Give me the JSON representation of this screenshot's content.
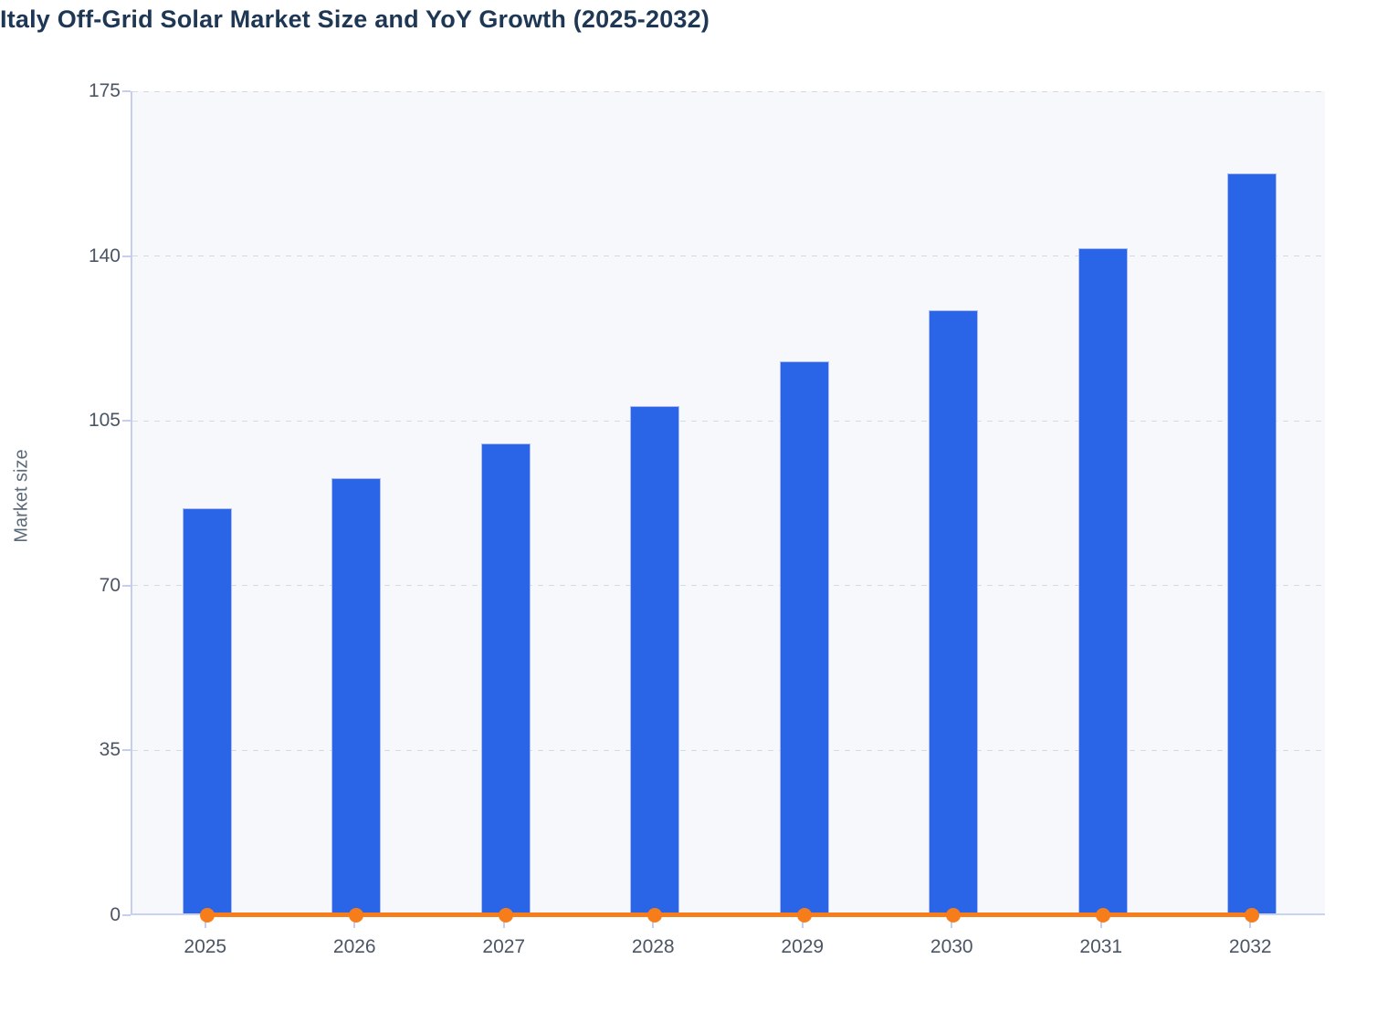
{
  "title": "Italy Off-Grid Solar Market Size and YoY Growth (2025-2032)",
  "y_axis_title": "Market size",
  "colors": {
    "bar_fill": "#2a65e8",
    "bar_border": "#b9c6f5",
    "line_color": "#f77d1a",
    "title_color": "#1e3755",
    "axis_label_color": "#4b5564",
    "axis_line_color": "#c5cef1",
    "gridline_color": "#d6dae0",
    "plot_background": "#f7f8fb"
  },
  "chart_data": {
    "type": "bar",
    "title": "Italy Off-Grid Solar Market Size and YoY Growth (2025-2032)",
    "categories": [
      "2025",
      "2026",
      "2027",
      "2028",
      "2029",
      "2030",
      "2031",
      "2032"
    ],
    "series": [
      {
        "name": "Market size",
        "type": "bar",
        "values": [
          86,
          92.4,
          99.8,
          107.8,
          117.3,
          128.1,
          141.3,
          157.2
        ]
      },
      {
        "name": "YoY Growth",
        "type": "line",
        "values": [
          0,
          0,
          0,
          0,
          0,
          0,
          0,
          0
        ],
        "note": "rendered flat on the zero baseline with a dot at each year"
      }
    ],
    "xlabel": "",
    "ylabel": "Market size",
    "ylim": [
      0,
      175
    ],
    "yticks": [
      0,
      35,
      70,
      105,
      140,
      175
    ],
    "grid": "dashed horizontal gridlines",
    "legend": "none"
  }
}
